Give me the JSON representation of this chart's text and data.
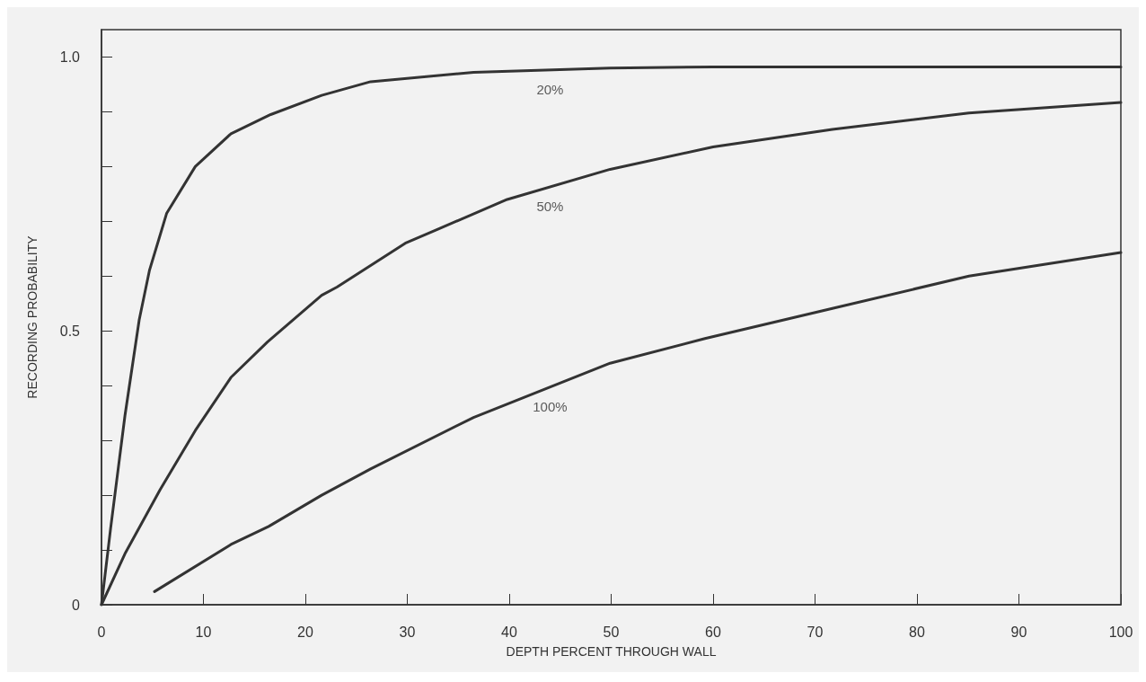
{
  "chart_data": {
    "type": "line",
    "xlabel": "DEPTH PERCENT THROUGH WALL",
    "ylabel": "RECORDING PROBABILITY",
    "xlim": [
      0,
      100
    ],
    "ylim": [
      0,
      1.05
    ],
    "xticks": [
      0,
      10,
      20,
      30,
      40,
      50,
      60,
      70,
      80,
      90,
      100
    ],
    "yticks": [
      0,
      {
        "value": 0.1,
        "label": null
      },
      {
        "value": 0.2,
        "label": null
      },
      {
        "value": 0.3,
        "label": null
      },
      {
        "value": 0.4,
        "label": null
      },
      0.5,
      {
        "value": 0.6,
        "label": null
      },
      {
        "value": 0.7,
        "label": null
      },
      {
        "value": 0.8,
        "label": null
      },
      {
        "value": 0.9,
        "label": null
      },
      {
        "value": 1,
        "label": "1.0"
      }
    ],
    "grid": false,
    "marker": "none",
    "line_style": "solid",
    "series": [
      {
        "name": "20%",
        "color": "#333333",
        "x": [
          0,
          0.9,
          2.3,
          3.7,
          4.7,
          6.4,
          9.2,
          12.7,
          16.6,
          21.6,
          26.4,
          36.5,
          49.9,
          60,
          80,
          100
        ],
        "values": [
          0,
          0.14,
          0.345,
          0.52,
          0.61,
          0.715,
          0.8,
          0.86,
          0.895,
          0.93,
          0.955,
          0.972,
          0.98,
          0.982,
          0.982,
          0.982
        ]
      },
      {
        "name": "50%",
        "color": "#333333",
        "x": [
          0,
          2.3,
          5.75,
          9.2,
          12.7,
          16.3,
          21.6,
          23.1,
          29.8,
          39.8,
          49.9,
          60,
          71.7,
          85.1,
          100
        ],
        "values": [
          0,
          0.093,
          0.21,
          0.318,
          0.415,
          0.48,
          0.565,
          0.58,
          0.66,
          0.74,
          0.795,
          0.836,
          0.868,
          0.898,
          0.917
        ]
      },
      {
        "name": "100%",
        "color": "#333333",
        "x": [
          5.2,
          12.7,
          16.4,
          21.6,
          26.4,
          36.5,
          49.9,
          59.2,
          71.7,
          85.1,
          100
        ],
        "values": [
          0.024,
          0.11,
          0.143,
          0.2,
          0.248,
          0.342,
          0.441,
          0.486,
          0.541,
          0.6,
          0.643
        ]
      }
    ]
  }
}
